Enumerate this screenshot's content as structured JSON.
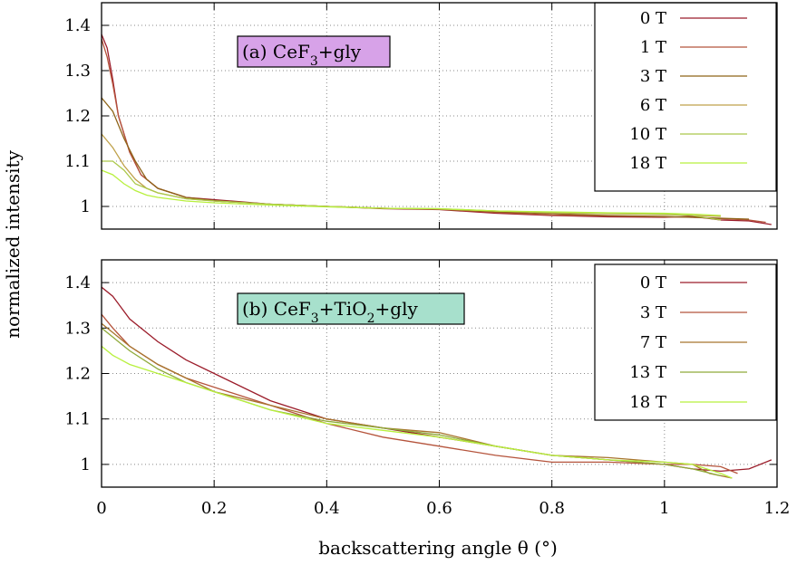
{
  "figure": {
    "xlabel": "backscattering angle θ (°)",
    "ylabel": "normalized intensity"
  },
  "chart_data": [
    {
      "type": "line",
      "annotation": {
        "prefix": "(a) CeF",
        "sub": "3",
        "suffix": "+gly",
        "bg_color": "#d7a2e8"
      },
      "xlim": [
        0,
        1.2
      ],
      "ylim": [
        0.95,
        1.45
      ],
      "x_ticks": [
        "0",
        "0.2",
        "0.4",
        "0.6",
        "0.8",
        "1",
        "1.2"
      ],
      "y_ticks": [
        "1",
        "1.1",
        "1.2",
        "1.3",
        "1.4"
      ],
      "grid": true,
      "show_x_tick_labels": false,
      "legend_position": "top-right",
      "series": [
        {
          "name": "0 T",
          "color": "#9b1c2a",
          "x": [
            0,
            0.01,
            0.02,
            0.03,
            0.05,
            0.07,
            0.1,
            0.15,
            0.2,
            0.3,
            0.4,
            0.5,
            0.6,
            0.7,
            0.8,
            0.9,
            1.0,
            1.05,
            1.1,
            1.15,
            1.19
          ],
          "y": [
            1.38,
            1.35,
            1.28,
            1.2,
            1.12,
            1.07,
            1.04,
            1.02,
            1.015,
            1.005,
            1.0,
            0.995,
            0.993,
            0.985,
            0.98,
            0.977,
            0.976,
            0.978,
            0.97,
            0.968,
            0.96
          ]
        },
        {
          "name": "1 T",
          "color": "#b5543c",
          "x": [
            0,
            0.01,
            0.02,
            0.03,
            0.05,
            0.07,
            0.1,
            0.15,
            0.2,
            0.3,
            0.4,
            0.5,
            0.6,
            0.7,
            0.8,
            0.9,
            1.0,
            1.05,
            1.1,
            1.15,
            1.18
          ],
          "y": [
            1.37,
            1.33,
            1.27,
            1.2,
            1.12,
            1.07,
            1.04,
            1.02,
            1.012,
            1.005,
            1.0,
            0.996,
            0.994,
            0.987,
            0.981,
            0.979,
            0.977,
            0.976,
            0.973,
            0.97,
            0.965
          ]
        },
        {
          "name": "3 T",
          "color": "#8e6418",
          "x": [
            0,
            0.02,
            0.04,
            0.06,
            0.08,
            0.1,
            0.15,
            0.2,
            0.3,
            0.4,
            0.5,
            0.6,
            0.7,
            0.8,
            0.9,
            1.0,
            1.05,
            1.1,
            1.15
          ],
          "y": [
            1.24,
            1.21,
            1.15,
            1.1,
            1.06,
            1.04,
            1.02,
            1.013,
            1.005,
            1.0,
            0.996,
            0.994,
            0.988,
            0.984,
            0.98,
            0.978,
            0.976,
            0.974,
            0.972
          ]
        },
        {
          "name": "6 T",
          "color": "#bfa14a",
          "x": [
            0,
            0.02,
            0.04,
            0.06,
            0.08,
            0.1,
            0.15,
            0.2,
            0.3,
            0.4,
            0.5,
            0.6,
            0.7,
            0.8,
            0.9,
            1.0,
            1.05,
            1.1
          ],
          "y": [
            1.16,
            1.13,
            1.09,
            1.06,
            1.04,
            1.03,
            1.017,
            1.012,
            1.005,
            1.0,
            0.996,
            0.994,
            0.99,
            0.986,
            0.984,
            0.982,
            0.98,
            0.978
          ]
        },
        {
          "name": "10 T",
          "color": "#abc84a",
          "x": [
            0,
            0.02,
            0.04,
            0.06,
            0.08,
            0.1,
            0.15,
            0.2,
            0.3,
            0.4,
            0.5,
            0.6,
            0.7,
            0.8,
            0.9,
            1.0,
            1.05,
            1.1
          ],
          "y": [
            1.1,
            1.1,
            1.08,
            1.05,
            1.04,
            1.03,
            1.017,
            1.012,
            1.005,
            1.0,
            0.996,
            0.995,
            0.99,
            0.987,
            0.985,
            0.983,
            0.98,
            0.97
          ]
        },
        {
          "name": "18 T",
          "color": "#b8f03e",
          "x": [
            0,
            0.02,
            0.04,
            0.06,
            0.08,
            0.1,
            0.15,
            0.2,
            0.3,
            0.4,
            0.5,
            0.6,
            0.7,
            0.8,
            0.9,
            1.0,
            1.05,
            1.1
          ],
          "y": [
            1.08,
            1.07,
            1.05,
            1.035,
            1.025,
            1.02,
            1.012,
            1.008,
            1.003,
            0.999,
            0.996,
            0.995,
            0.99,
            0.988,
            0.986,
            0.985,
            0.983,
            0.98
          ]
        }
      ]
    },
    {
      "type": "line",
      "annotation": {
        "prefix": "(b) CeF",
        "sub": "3",
        "mid": "+TiO",
        "sub2": "2",
        "suffix": "+gly",
        "bg_color": "#a7e0cc"
      },
      "xlim": [
        0,
        1.2
      ],
      "ylim": [
        0.95,
        1.45
      ],
      "x_ticks": [
        "0",
        "0.2",
        "0.4",
        "0.6",
        "0.8",
        "1",
        "1.2"
      ],
      "y_ticks": [
        "1",
        "1.1",
        "1.2",
        "1.3",
        "1.4"
      ],
      "grid": true,
      "show_x_tick_labels": true,
      "legend_position": "top-right",
      "series": [
        {
          "name": "0 T",
          "color": "#9b1c2a",
          "x": [
            0,
            0.02,
            0.05,
            0.1,
            0.15,
            0.2,
            0.3,
            0.4,
            0.5,
            0.6,
            0.7,
            0.8,
            0.9,
            1.0,
            1.05,
            1.1,
            1.15,
            1.19
          ],
          "y": [
            1.39,
            1.37,
            1.32,
            1.27,
            1.23,
            1.2,
            1.14,
            1.1,
            1.08,
            1.06,
            1.04,
            1.02,
            1.01,
            1.0,
            0.99,
            0.985,
            0.99,
            1.01
          ]
        },
        {
          "name": "3 T",
          "color": "#b5543c",
          "x": [
            0,
            0.02,
            0.05,
            0.1,
            0.15,
            0.2,
            0.3,
            0.4,
            0.5,
            0.6,
            0.7,
            0.8,
            0.9,
            1.0,
            1.05,
            1.1,
            1.13
          ],
          "y": [
            1.33,
            1.3,
            1.26,
            1.22,
            1.19,
            1.17,
            1.13,
            1.09,
            1.06,
            1.04,
            1.02,
            1.005,
            1.005,
            1.0,
            1.0,
            0.995,
            0.98
          ]
        },
        {
          "name": "7 T",
          "color": "#a8752e",
          "x": [
            0,
            0.02,
            0.05,
            0.1,
            0.15,
            0.2,
            0.3,
            0.4,
            0.5,
            0.6,
            0.7,
            0.8,
            0.9,
            1.0,
            1.05,
            1.08,
            1.12
          ],
          "y": [
            1.31,
            1.29,
            1.26,
            1.22,
            1.19,
            1.16,
            1.13,
            1.1,
            1.08,
            1.07,
            1.04,
            1.02,
            1.015,
            1.005,
            1.0,
            0.98,
            0.97
          ]
        },
        {
          "name": "13 T",
          "color": "#8faa3a",
          "x": [
            0,
            0.02,
            0.05,
            0.1,
            0.15,
            0.2,
            0.3,
            0.4,
            0.5,
            0.6,
            0.7,
            0.8,
            0.9,
            1.0,
            1.05,
            1.1
          ],
          "y": [
            1.3,
            1.28,
            1.25,
            1.21,
            1.18,
            1.16,
            1.12,
            1.095,
            1.08,
            1.065,
            1.04,
            1.02,
            1.01,
            1.0,
            0.99,
            0.975
          ]
        },
        {
          "name": "18 T",
          "color": "#b8f03e",
          "x": [
            0,
            0.02,
            0.05,
            0.1,
            0.15,
            0.2,
            0.3,
            0.4,
            0.5,
            0.6,
            0.7,
            0.8,
            0.9,
            1.0,
            1.05,
            1.1,
            1.12
          ],
          "y": [
            1.26,
            1.24,
            1.22,
            1.2,
            1.18,
            1.16,
            1.12,
            1.09,
            1.075,
            1.06,
            1.04,
            1.02,
            1.01,
            1.005,
            1.0,
            0.98,
            0.97
          ]
        }
      ]
    }
  ]
}
